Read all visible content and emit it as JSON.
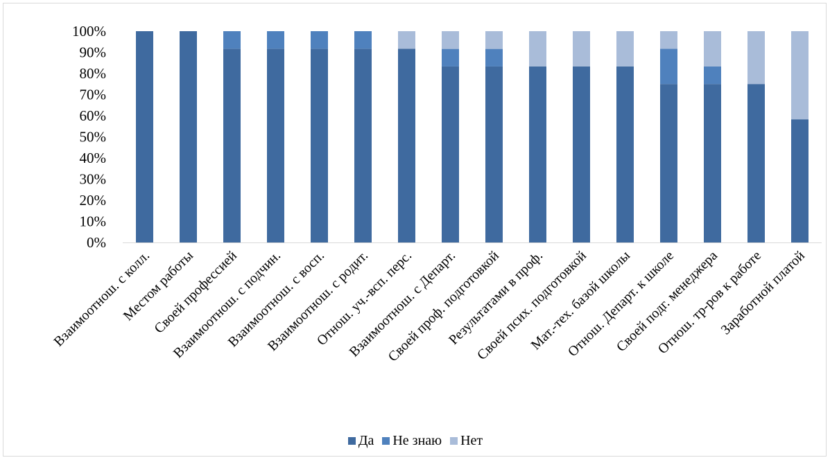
{
  "chart_data": {
    "type": "bar",
    "stacked": true,
    "percent_stacked": true,
    "categories": [
      "Взаимоотнош. с колл.",
      "Местом работы",
      "Своей профессией",
      "Взаимоотнош. с подчин.",
      "Взаимоотнош. с восп.",
      "Взаимоотнош. с родит.",
      "Отнош. уч.-всп. перс.",
      "Взаимоотнош. с Департ.",
      "Своей проф. подготовкой",
      "Результатами в проф.",
      "Своей псих. подготовкой",
      "Мат.-тех. базой школы",
      "Отнош. Департ. к школе",
      "Своей подг. менеджера",
      "Отнош. тр-ров к работе",
      "Заработной платой"
    ],
    "series": [
      {
        "name": "Да",
        "color": "#3f6a9f",
        "values": [
          100,
          100,
          91.7,
          91.7,
          91.7,
          91.7,
          91.7,
          83.3,
          83.3,
          83.3,
          83.3,
          83.3,
          75,
          75,
          75,
          58.3
        ]
      },
      {
        "name": "Не знаю",
        "color": "#4f81bd",
        "values": [
          0,
          0,
          8.3,
          8.3,
          8.3,
          8.3,
          0,
          8.3,
          8.3,
          0,
          0,
          0,
          16.7,
          8.3,
          0,
          0
        ]
      },
      {
        "name": "Нет",
        "color": "#a9bcd9",
        "values": [
          0,
          0,
          0,
          0,
          0,
          0,
          8.3,
          8.4,
          8.4,
          16.7,
          16.7,
          16.7,
          8.3,
          16.7,
          25,
          41.7
        ]
      }
    ],
    "yticks": [
      "0%",
      "10%",
      "20%",
      "30%",
      "40%",
      "50%",
      "60%",
      "70%",
      "80%",
      "90%",
      "100%"
    ],
    "ylim": [
      0,
      100
    ],
    "grid": false,
    "legend_position": "bottom",
    "title": "",
    "xlabel": "",
    "ylabel": ""
  }
}
